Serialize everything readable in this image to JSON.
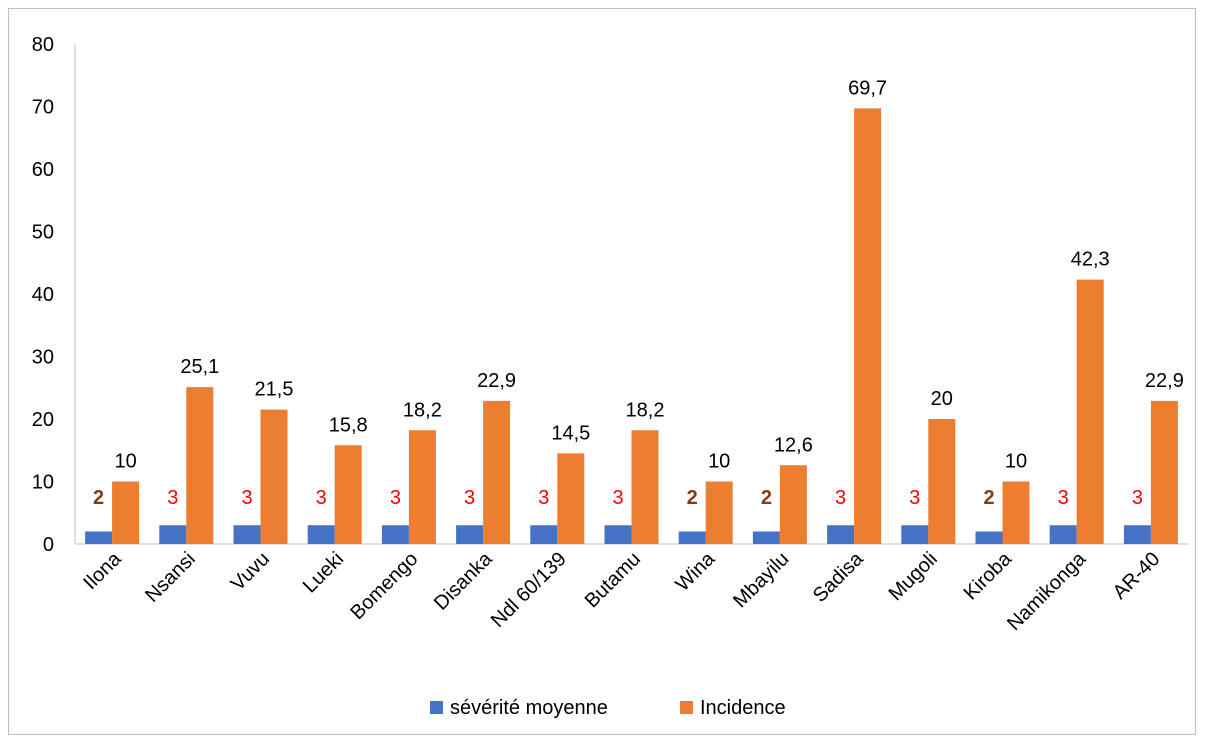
{
  "chart_data": {
    "type": "bar",
    "categories": [
      "Ilona",
      "Nsansi",
      "Vuvu",
      "Lueki",
      "Bomengo",
      "Disanka",
      "Ndl 60/139",
      "Butamu",
      "Wina",
      "Mbayilu",
      "Sadisa",
      "Mugoli",
      "Kiroba",
      "Namikonga",
      "AR-40"
    ],
    "series": [
      {
        "name": "sévérité moyenne",
        "color": "#4472C4",
        "values": [
          2,
          3,
          3,
          3,
          3,
          3,
          3,
          3,
          2,
          2,
          3,
          3,
          2,
          3,
          3
        ],
        "labels": [
          "2",
          "3",
          "3",
          "3",
          "3",
          "3",
          "3",
          "3",
          "2",
          "2",
          "3",
          "3",
          "2",
          "3",
          "3"
        ],
        "label_colors": [
          "#843C0C",
          "#FF0000",
          "#FF0000",
          "#FF0000",
          "#FF0000",
          "#FF0000",
          "#FF0000",
          "#FF0000",
          "#843C0C",
          "#843C0C",
          "#FF0000",
          "#FF0000",
          "#843C0C",
          "#FF0000",
          "#FF0000"
        ]
      },
      {
        "name": "Incidence",
        "color": "#ED7D31",
        "values": [
          10,
          25.1,
          21.5,
          15.8,
          18.2,
          22.9,
          14.5,
          18.2,
          10,
          12.6,
          69.7,
          20,
          10,
          42.3,
          22.9
        ],
        "labels": [
          "10",
          "25,1",
          "21,5",
          "15,8",
          "18,2",
          "22,9",
          "14,5",
          "18,2",
          "10",
          "12,6",
          "69,7",
          "20",
          "10",
          "42,3",
          "22,9"
        ]
      }
    ],
    "yticks": [
      "0",
      "10",
      "20",
      "30",
      "40",
      "50",
      "60",
      "70",
      "80"
    ],
    "ylim": [
      0,
      80
    ],
    "grid": false,
    "legend_position": "bottom"
  }
}
